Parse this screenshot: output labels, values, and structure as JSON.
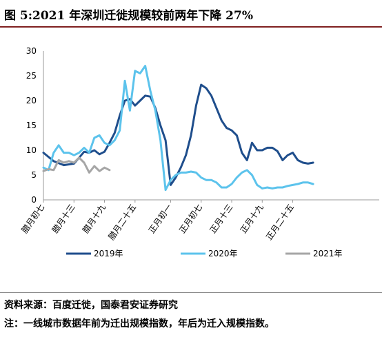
{
  "figure": {
    "title": "图 5:2021 年深圳迁徙规模较前两年下降 27%",
    "source": "资料来源：百度迁徙，国泰君安证券研究",
    "note": "注：一线城市数据年前为迁出规模指数，年后为迁入规模指数。"
  },
  "colors": {
    "2019": "#1f4e8c",
    "2020": "#5cc3ec",
    "2021": "#a6a6a6"
  },
  "chart_data": {
    "type": "line",
    "ylim": [
      0,
      30
    ],
    "yticks": [
      0,
      5,
      10,
      15,
      20,
      25,
      30
    ],
    "xlim": [
      0,
      66
    ],
    "xticks": [
      {
        "x": 0,
        "label": "腊月初七"
      },
      {
        "x": 6,
        "label": "腊月十三"
      },
      {
        "x": 12,
        "label": "腊月十九"
      },
      {
        "x": 18,
        "label": "腊月二十五"
      },
      {
        "x": 25,
        "label": "正月初一"
      },
      {
        "x": 31,
        "label": "正月初七"
      },
      {
        "x": 37,
        "label": "正月十三"
      },
      {
        "x": 43,
        "label": "正月十九"
      },
      {
        "x": 49,
        "label": "正月二十五"
      }
    ],
    "series": [
      {
        "name": "2019年",
        "x": [
          0,
          2,
          4,
          6,
          7,
          8,
          9,
          10,
          11,
          12,
          13,
          14,
          15,
          16,
          17,
          18,
          19,
          20,
          21,
          22,
          23,
          24,
          25,
          26,
          27,
          28,
          29,
          30,
          31,
          32,
          33,
          34,
          35,
          36,
          37,
          38,
          39,
          40,
          41,
          42,
          43,
          44,
          45,
          46,
          47,
          48,
          49,
          50,
          51,
          52,
          53
        ],
        "values": [
          9.5,
          7.8,
          7.0,
          7.3,
          8.5,
          9.7,
          9.5,
          10.0,
          9.2,
          9.7,
          11.5,
          13.5,
          17.0,
          20.0,
          20.3,
          19.0,
          20.0,
          21.0,
          20.8,
          18.5,
          15.0,
          12.0,
          3.0,
          4.5,
          6.5,
          9.0,
          13.0,
          19.0,
          23.2,
          22.5,
          21.0,
          18.5,
          16.0,
          14.5,
          14.0,
          13.0,
          9.5,
          8.0,
          11.5,
          10.0,
          10.0,
          10.5,
          10.5,
          9.8,
          8.0,
          9.0,
          9.5,
          8.0,
          7.5,
          7.3,
          7.5
        ]
      },
      {
        "name": "2020年",
        "x": [
          0,
          1,
          2,
          3,
          4,
          5,
          6,
          7,
          8,
          9,
          10,
          11,
          12,
          13,
          14,
          15,
          16,
          17,
          18,
          19,
          20,
          21,
          22,
          23,
          24,
          25,
          26,
          27,
          28,
          29,
          30,
          31,
          32,
          33,
          34,
          35,
          36,
          37,
          38,
          39,
          40,
          41,
          42,
          43,
          44,
          45,
          46,
          47,
          48,
          49,
          50,
          51,
          52,
          53
        ],
        "values": [
          6.5,
          6.0,
          9.5,
          11.0,
          9.5,
          9.5,
          9.0,
          9.5,
          10.5,
          9.5,
          12.5,
          13.0,
          11.5,
          11.0,
          12.0,
          14.0,
          24.0,
          18.0,
          26.0,
          25.5,
          27.0,
          22.0,
          18.0,
          12.0,
          2.0,
          4.0,
          5.0,
          5.5,
          5.5,
          5.7,
          5.5,
          4.5,
          4.0,
          4.0,
          3.5,
          2.5,
          2.5,
          3.2,
          4.5,
          5.5,
          6.0,
          5.0,
          3.0,
          2.3,
          2.5,
          2.3,
          2.5,
          2.5,
          2.8,
          3.0,
          3.2,
          3.5,
          3.5,
          3.2
        ]
      },
      {
        "name": "2021年",
        "x": [
          0,
          1,
          2,
          3,
          4,
          5,
          6,
          7,
          8,
          9,
          10,
          11,
          12,
          13
        ],
        "values": [
          5.8,
          6.2,
          6.0,
          8.0,
          7.5,
          7.8,
          7.5,
          8.5,
          7.5,
          5.5,
          6.8,
          5.8,
          6.5,
          6.0
        ]
      }
    ]
  }
}
